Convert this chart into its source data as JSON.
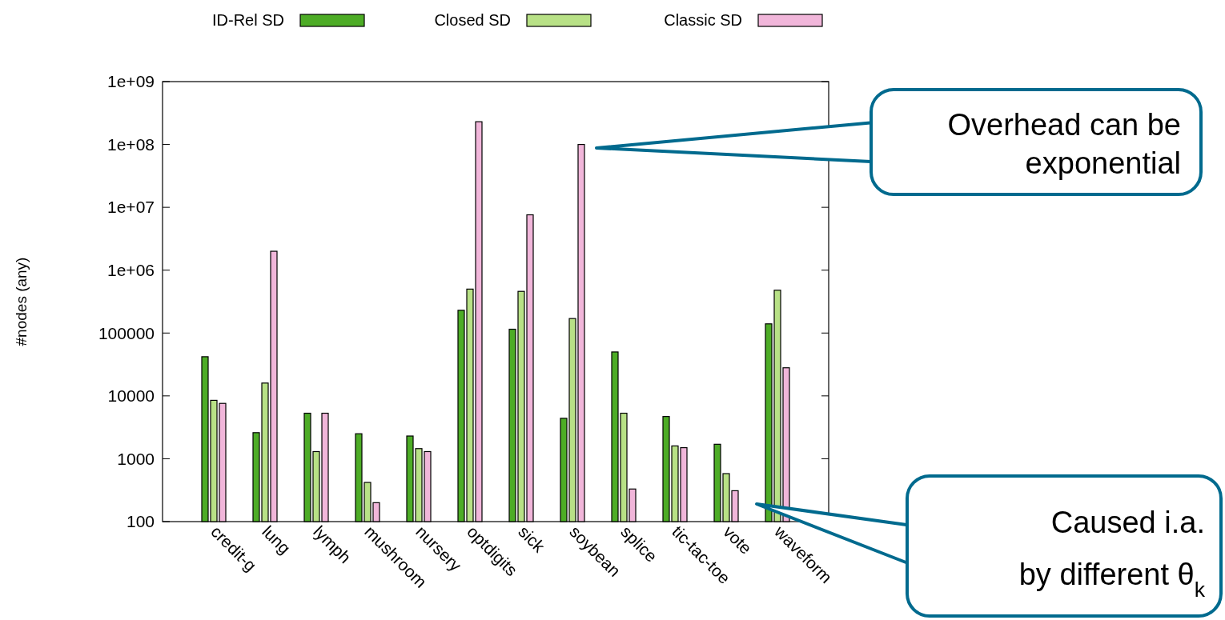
{
  "chart_data": {
    "type": "bar",
    "ylabel": "#nodes (any)",
    "categories": [
      "credit-g",
      "lung",
      "lymph",
      "mushroom",
      "nursery",
      "optdigits",
      "sick",
      "soybean",
      "splice",
      "tic-tac-toe",
      "vote",
      "waveform"
    ],
    "series": [
      {
        "name": "ID-Rel SD",
        "color": "#4dac26",
        "values": [
          42000,
          2600,
          5300,
          2500,
          2300,
          230000,
          115000,
          4400,
          50000,
          4700,
          1700,
          140000
        ]
      },
      {
        "name": "Closed SD",
        "color": "#b8e186",
        "values": [
          8500,
          16000,
          1300,
          420,
          1450,
          500000,
          460000,
          170000,
          5300,
          1600,
          580,
          480000
        ]
      },
      {
        "name": "Classic SD",
        "color": "#f1b6da",
        "values": [
          7600,
          2000000,
          5300,
          200,
          1300,
          230000000,
          7600000,
          100000000,
          330,
          1500,
          310,
          28000
        ]
      }
    ],
    "log": true,
    "ylim": [
      100,
      1000000000
    ],
    "yticks": [
      100,
      1000,
      10000,
      100000,
      {
        "value": 1000000,
        "label": "1e+06"
      },
      {
        "value": 10000000,
        "label": "1e+07"
      },
      {
        "value": 100000000,
        "label": "1e+08"
      },
      {
        "value": 1000000000,
        "label": "1e+09"
      }
    ],
    "legend": "top",
    "grid": false,
    "annotations": [
      "Overhead can be exponential",
      "Caused i.a. by different θ$_{k}$"
    ]
  }
}
